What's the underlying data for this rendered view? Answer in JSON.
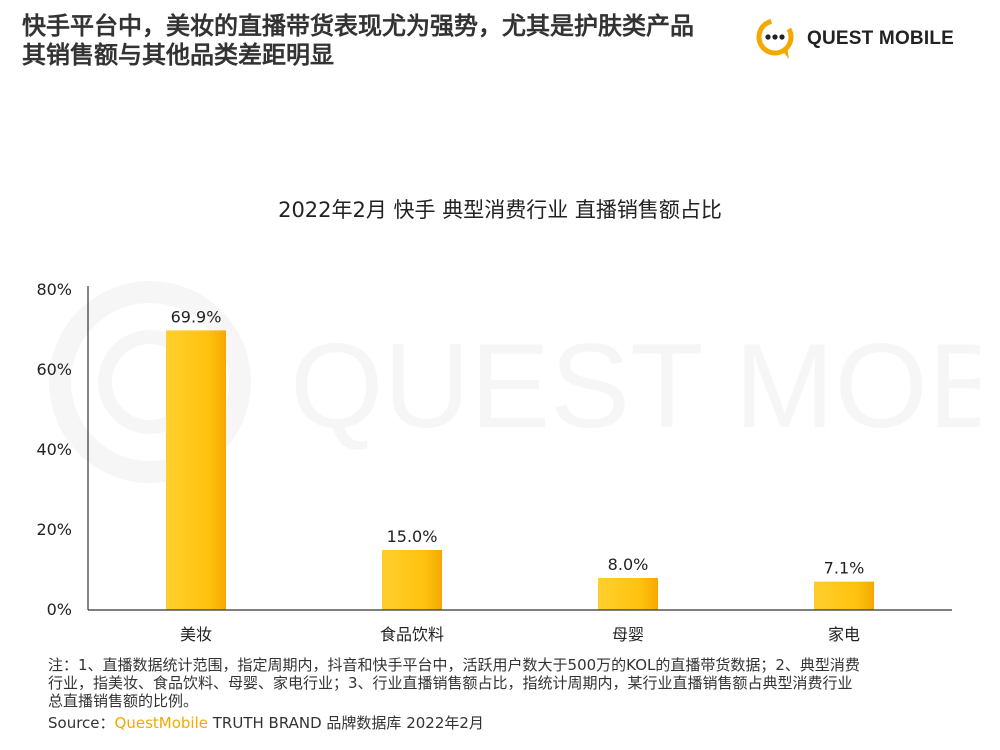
{
  "header": {
    "headline_line1": "快手平台中，美妆的直播带货表现尤为强势，尤其是护肤类产品",
    "headline_line2": "其销售额与其他品类差距明显",
    "logo_text": "QUEST MOBILE"
  },
  "watermark": {
    "text": "QUEST MOBILE"
  },
  "colors": {
    "accent": "#f2a900",
    "bar": "#ffc20e",
    "bar_dark": "#f7ac00",
    "axis": "#333333"
  },
  "chart_data": {
    "type": "bar",
    "title": "2022年2月 快手 典型消费行业 直播销售额占比",
    "categories": [
      "美妆",
      "食品饮料",
      "母婴",
      "家电"
    ],
    "values": [
      69.9,
      15.0,
      8.0,
      7.1
    ],
    "value_labels": [
      "69.9%",
      "15.0%",
      "8.0%",
      "7.1%"
    ],
    "unit": "%",
    "ylim": [
      0,
      80
    ],
    "yticks": [
      0,
      20,
      40,
      60,
      80
    ],
    "ytick_labels": [
      "0%",
      "20%",
      "40%",
      "60%",
      "80%"
    ],
    "xlabel": "",
    "ylabel": "",
    "grid": false,
    "legend": "none"
  },
  "footer": {
    "notes_line1": "注：1、直播数据统计范围，指定周期内，抖音和快手平台中，活跃用户数大于500万的KOL的直播带货数据；2、典型消费",
    "notes_line2": "行业，指美妆、食品饮料、母婴、家电行业；3、行业直播销售额占比，指统计周期内，某行业直播销售额占典型消费行业",
    "notes_line3": "总直播销售额的比例。",
    "source_prefix": "Source：",
    "source_brand": "QuestMobile",
    "source_rest": " TRUTH BRAND 品牌数据库 2022年2月"
  }
}
